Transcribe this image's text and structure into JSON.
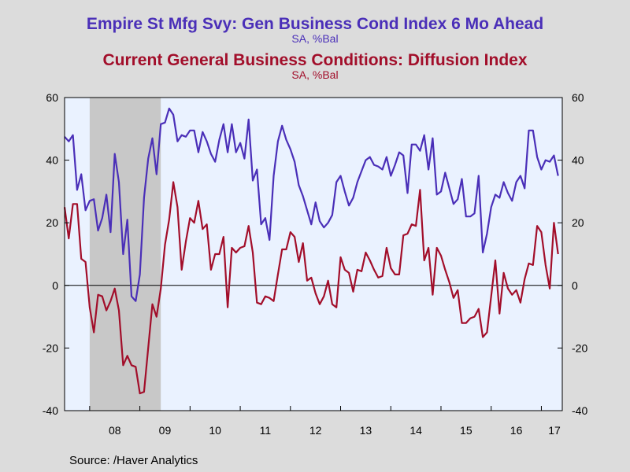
{
  "chart_data": {
    "type": "line",
    "title": "Empire St Mfg Svy: Gen Business Cond Index 6 Mo Ahead",
    "subtitle": "SA, %Bal",
    "title2": "Current General Business Conditions: Diffusion Index",
    "subtitle2": "SA, %Bal",
    "xlabel": "",
    "ylabel": "",
    "ylim": [
      -40,
      60
    ],
    "yticks": [
      "60",
      "40",
      "20",
      "0",
      "-20",
      "-40"
    ],
    "ytick_values": [
      60,
      40,
      20,
      0,
      -20,
      -40
    ],
    "xlim": [
      "2007-07",
      "2017-06"
    ],
    "xticks": [
      "08",
      "09",
      "10",
      "11",
      "12",
      "13",
      "14",
      "15",
      "16",
      "17"
    ],
    "grid": false,
    "recession_shading": {
      "start": "2008-01",
      "end": "2009-06",
      "color": "#c8c8c8"
    },
    "source": "Source:  /Haver Analytics",
    "series": [
      {
        "name": "Empire St Mfg Svy: Gen Business Cond Index 6 Mo Ahead",
        "color": "#4a2fb8",
        "start": "2007-07",
        "values": [
          47.5,
          46,
          48,
          30.5,
          35.5,
          24,
          27,
          27.5,
          17.5,
          21.5,
          29,
          17,
          42,
          33,
          10,
          21,
          -3.5,
          -5,
          3.5,
          28,
          40.5,
          47,
          35.5,
          51.5,
          52,
          56.5,
          54.5,
          46,
          48,
          47.5,
          49.5,
          49.5,
          42.5,
          49,
          46,
          42,
          39.5,
          46.5,
          51.5,
          42.5,
          51.5,
          42.5,
          45.5,
          40.5,
          53,
          33.5,
          37,
          19.5,
          21.5,
          14.5,
          35,
          46,
          51,
          46.5,
          43.5,
          39.5,
          32,
          28.5,
          24,
          19.5,
          26.5,
          20.5,
          18.5,
          20,
          22.5,
          33,
          35,
          30,
          25.5,
          28,
          33,
          36.5,
          40,
          41,
          38.5,
          38,
          37,
          41,
          35,
          38.5,
          42.5,
          41.5,
          29.5,
          45,
          45,
          43,
          48,
          37,
          47,
          29,
          30,
          36,
          31,
          26,
          27.5,
          34,
          22,
          22,
          23,
          35,
          10.5,
          16.5,
          25,
          29,
          28,
          33,
          29.5,
          27,
          33,
          35,
          31,
          49.5,
          49.5,
          41,
          37,
          40,
          39.5,
          41.5,
          35
        ]
      },
      {
        "name": "Current General Business Conditions: Diffusion Index",
        "color": "#a20e2a",
        "start": "2007-07",
        "values": [
          25,
          15,
          26,
          26,
          8.5,
          7.5,
          -7,
          -15,
          -3,
          -3.5,
          -8,
          -5,
          -1,
          -8,
          -25.5,
          -22.5,
          -25.5,
          -26,
          -34.5,
          -34,
          -20,
          -6,
          -10,
          -1,
          13,
          21,
          33,
          25,
          5,
          14,
          21.5,
          20,
          27,
          18,
          19.5,
          5,
          10,
          10,
          15.5,
          -7,
          12,
          10.5,
          12,
          12.5,
          19,
          10.5,
          -5.5,
          -6,
          -3.5,
          -4,
          -5,
          3.5,
          11.5,
          11.5,
          17,
          15.5,
          7.5,
          13.5,
          1.5,
          2.5,
          -2.5,
          -6,
          -3.5,
          1.5,
          -6,
          -7,
          9,
          5,
          4,
          -2,
          5,
          4.5,
          10.5,
          8,
          5,
          2.5,
          3,
          12,
          5.5,
          3.5,
          3.5,
          16,
          16.5,
          19.5,
          19,
          30.5,
          8,
          12,
          -3,
          12,
          9.5,
          5,
          1,
          -4,
          -1.5,
          -12,
          -12,
          -10.5,
          -10,
          -7.5,
          -16.5,
          -15,
          -3.5,
          8,
          -9,
          4,
          -1,
          -3,
          -1.5,
          -5.5,
          2,
          7,
          6.5,
          19,
          17,
          6.5,
          -1,
          20,
          10
        ]
      }
    ]
  }
}
